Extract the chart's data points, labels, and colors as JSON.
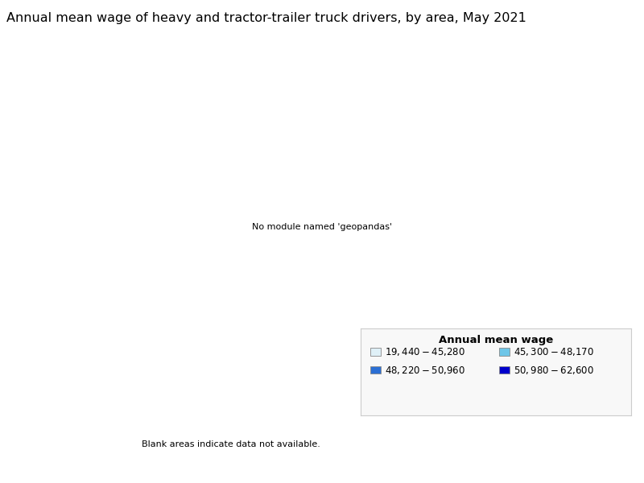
{
  "title": "Annual mean wage of heavy and tractor-trailer truck drivers, by area, May 2021",
  "legend_title": "Annual mean wage",
  "legend_items": [
    {
      "label": "$19,440 - $45,280",
      "color": "#dff0f7"
    },
    {
      "label": "$45,300 - $48,170",
      "color": "#6ec6e8"
    },
    {
      "label": "$48,220 - $50,960",
      "color": "#2b6fd4"
    },
    {
      "label": "$50,980 - $62,600",
      "color": "#0000cc"
    }
  ],
  "blank_note": "Blank areas indicate data not available.",
  "background_color": "#ffffff",
  "title_fontsize": 11.5,
  "legend_fontsize": 8.5,
  "fig_width": 8.0,
  "fig_height": 6.0,
  "color_bins": [
    45280,
    48170,
    50960,
    62600
  ],
  "bin_colors": [
    "#dff0f7",
    "#6ec6e8",
    "#2b6fd4",
    "#0000cc"
  ],
  "edge_color": "#ffffff",
  "edge_linewidth": 0.4
}
